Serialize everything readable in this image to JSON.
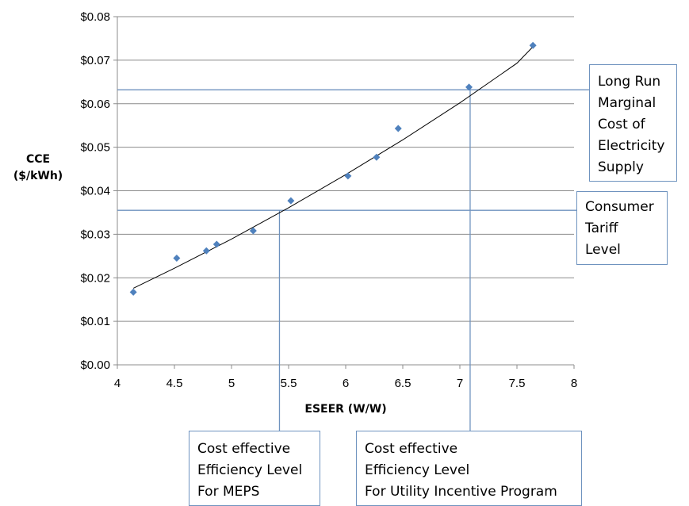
{
  "chart_data": {
    "type": "scatter",
    "xlabel": "ESEER (W/W)",
    "ylabel_lines": [
      "CCE",
      "($/kWh)"
    ],
    "xlim": [
      4,
      8
    ],
    "ylim": [
      0,
      0.08
    ],
    "x_ticks": [
      "4",
      "4.5",
      "5",
      "5.5",
      "6",
      "6.5",
      "7",
      "7.5",
      "8"
    ],
    "y_ticks": [
      "$0.00",
      "$0.01",
      "$0.02",
      "$0.03",
      "$0.04",
      "$0.05",
      "$0.06",
      "$0.07",
      "$0.08"
    ],
    "grid": true,
    "points": [
      {
        "x": 4.14,
        "y": 0.0167
      },
      {
        "x": 4.52,
        "y": 0.0245
      },
      {
        "x": 4.78,
        "y": 0.0262
      },
      {
        "x": 4.87,
        "y": 0.0277
      },
      {
        "x": 5.19,
        "y": 0.0308
      },
      {
        "x": 5.52,
        "y": 0.0377
      },
      {
        "x": 6.02,
        "y": 0.0434
      },
      {
        "x": 6.27,
        "y": 0.0477
      },
      {
        "x": 6.46,
        "y": 0.0543
      },
      {
        "x": 7.08,
        "y": 0.0638
      },
      {
        "x": 7.64,
        "y": 0.0734
      }
    ],
    "trendline": [
      {
        "x": 4.14,
        "y": 0.0176
      },
      {
        "x": 4.5,
        "y": 0.0222
      },
      {
        "x": 5.0,
        "y": 0.0289
      },
      {
        "x": 5.5,
        "y": 0.0361
      },
      {
        "x": 6.0,
        "y": 0.0437
      },
      {
        "x": 6.5,
        "y": 0.0517
      },
      {
        "x": 7.0,
        "y": 0.0602
      },
      {
        "x": 7.5,
        "y": 0.0693
      },
      {
        "x": 7.64,
        "y": 0.0731
      }
    ],
    "reference_lines": [
      {
        "name": "long-run",
        "y": 0.0632,
        "x": 7.09
      },
      {
        "name": "tariff",
        "y": 0.0355,
        "x": 5.42
      }
    ],
    "point_color": "#4f81bd",
    "reference_color": "#6f93bf",
    "gridline_color": "#8c8c8c"
  },
  "annotations": {
    "long_run": [
      "Long Run",
      "Marginal",
      "Cost of",
      "Electricity",
      "Supply"
    ],
    "tariff": [
      "Consumer",
      "Tariff",
      "Level"
    ],
    "meps": [
      "Cost effective",
      "Efficiency Level",
      "For MEPS"
    ],
    "utility": [
      "Cost effective",
      "Efficiency Level",
      "For Utility Incentive Program"
    ]
  }
}
